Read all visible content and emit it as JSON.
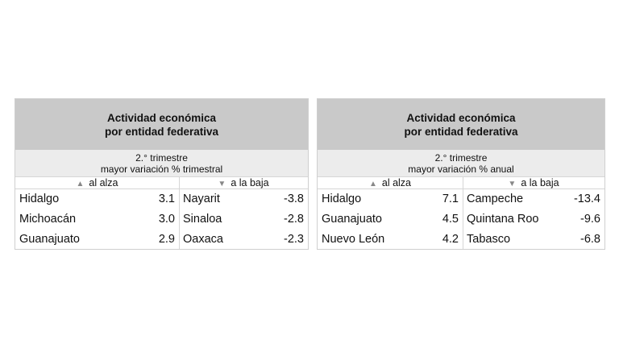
{
  "panels": [
    {
      "title": [
        "Actividad económica",
        "por entidad federativa"
      ],
      "subtitle": [
        "2.° trimestre",
        "mayor variación % trimestral"
      ],
      "headers": [
        "al alza",
        "a la baja"
      ],
      "rows": [
        [
          "Hidalgo",
          "3.1",
          "Nayarit",
          "-3.8"
        ],
        [
          "Michoacán",
          "3.0",
          "Sinaloa",
          "-2.8"
        ],
        [
          "Guanajuato",
          "2.9",
          "Oaxaca",
          "-2.3"
        ]
      ]
    },
    {
      "title": [
        "Actividad económica",
        "por entidad federativa"
      ],
      "subtitle": [
        "2.° trimestre",
        "mayor variación % anual"
      ],
      "headers": [
        "al alza",
        "a la baja"
      ],
      "rows": [
        [
          "Hidalgo",
          "7.1",
          "Campeche",
          "-13.4"
        ],
        [
          "Guanajuato",
          "4.5",
          "Quintana Roo",
          "-9.6"
        ],
        [
          "Nuevo León",
          "4.2",
          "Tabasco",
          "-6.8"
        ]
      ]
    }
  ]
}
